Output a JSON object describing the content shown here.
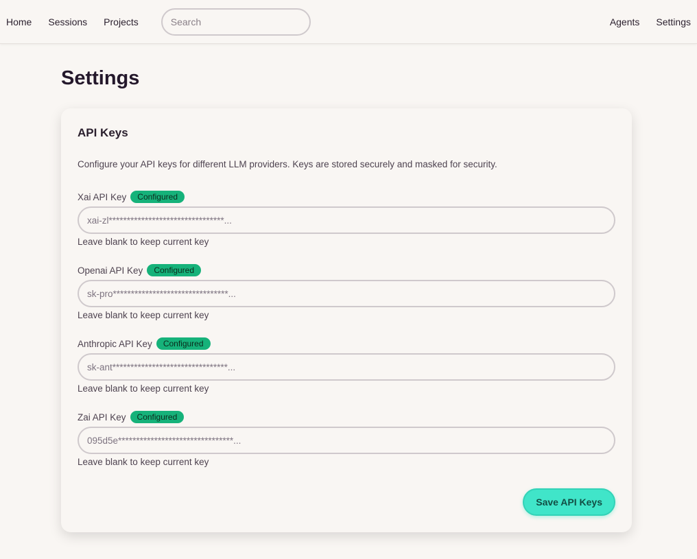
{
  "nav": {
    "home": "Home",
    "sessions": "Sessions",
    "projects": "Projects",
    "search_placeholder": "Search",
    "agents": "Agents",
    "settings": "Settings"
  },
  "page": {
    "title": "Settings"
  },
  "card": {
    "title": "API Keys",
    "description": "Configure your API keys for different LLM providers. Keys are stored securely and masked for security.",
    "fields": [
      {
        "label": "Xai API Key",
        "badge": "Configured",
        "placeholder": "xai-zl********************************...",
        "hint": "Leave blank to keep current key"
      },
      {
        "label": "Openai API Key",
        "badge": "Configured",
        "placeholder": "sk-pro********************************...",
        "hint": "Leave blank to keep current key"
      },
      {
        "label": "Anthropic API Key",
        "badge": "Configured",
        "placeholder": "sk-ant********************************...",
        "hint": "Leave blank to keep current key"
      },
      {
        "label": "Zai API Key",
        "badge": "Configured",
        "placeholder": "095d5e********************************...",
        "hint": "Leave blank to keep current key"
      }
    ],
    "save_label": "Save API Keys"
  },
  "colors": {
    "accent": "#40e5c9",
    "badge": "#16b27a"
  }
}
